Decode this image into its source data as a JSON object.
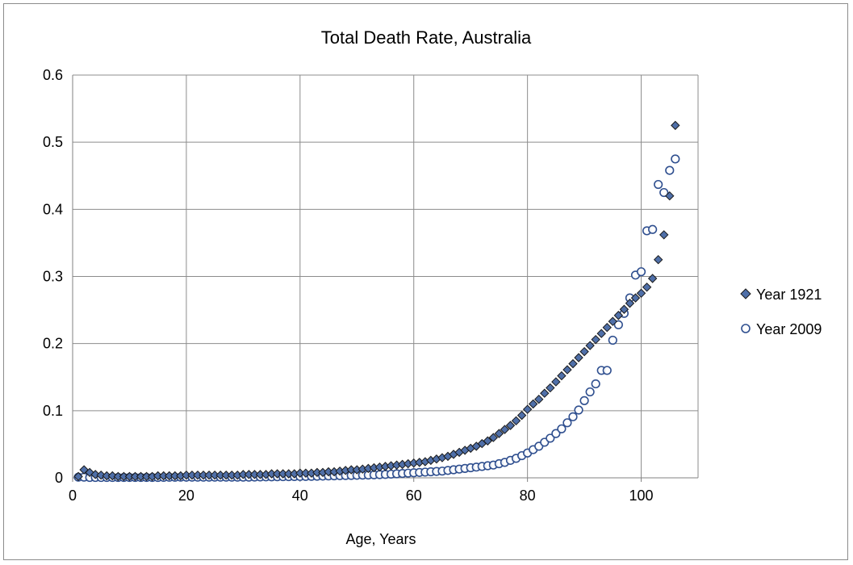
{
  "chart_data": {
    "type": "scatter",
    "title": "Total Death Rate, Australia",
    "xlabel": "Age, Years",
    "ylabel": "",
    "xlim": [
      0,
      110
    ],
    "ylim": [
      0,
      0.6
    ],
    "xticks": [
      "0",
      "20",
      "40",
      "60",
      "80",
      "100"
    ],
    "yticks": [
      "0",
      "0.1",
      "0.2",
      "0.3",
      "0.4",
      "0.5",
      "0.6"
    ],
    "grid": true,
    "legend_position": "right",
    "series": [
      {
        "name": "Year 1921",
        "marker": "diamond",
        "color": "#4f6fa8",
        "edge": "#1a1a1a",
        "x": [
          1,
          2,
          3,
          4,
          5,
          6,
          7,
          8,
          9,
          10,
          11,
          12,
          13,
          14,
          15,
          16,
          17,
          18,
          19,
          20,
          21,
          22,
          23,
          24,
          25,
          26,
          27,
          28,
          29,
          30,
          31,
          32,
          33,
          34,
          35,
          36,
          37,
          38,
          39,
          40,
          41,
          42,
          43,
          44,
          45,
          46,
          47,
          48,
          49,
          50,
          51,
          52,
          53,
          54,
          55,
          56,
          57,
          58,
          59,
          60,
          61,
          62,
          63,
          64,
          65,
          66,
          67,
          68,
          69,
          70,
          71,
          72,
          73,
          74,
          75,
          76,
          77,
          78,
          79,
          80,
          81,
          82,
          83,
          84,
          85,
          86,
          87,
          88,
          89,
          90,
          91,
          92,
          93,
          94,
          95,
          96,
          97,
          98,
          99,
          100,
          101,
          102,
          103,
          104,
          105,
          106
        ],
        "y": [
          0.002,
          0.012,
          0.008,
          0.005,
          0.004,
          0.003,
          0.003,
          0.002,
          0.002,
          0.002,
          0.002,
          0.002,
          0.002,
          0.002,
          0.003,
          0.003,
          0.003,
          0.003,
          0.003,
          0.004,
          0.004,
          0.004,
          0.004,
          0.004,
          0.004,
          0.004,
          0.004,
          0.004,
          0.004,
          0.005,
          0.005,
          0.005,
          0.005,
          0.005,
          0.006,
          0.006,
          0.006,
          0.006,
          0.006,
          0.007,
          0.007,
          0.007,
          0.008,
          0.008,
          0.009,
          0.009,
          0.01,
          0.011,
          0.012,
          0.012,
          0.013,
          0.014,
          0.015,
          0.016,
          0.017,
          0.018,
          0.019,
          0.02,
          0.021,
          0.022,
          0.023,
          0.024,
          0.026,
          0.028,
          0.03,
          0.032,
          0.035,
          0.038,
          0.041,
          0.044,
          0.047,
          0.051,
          0.055,
          0.06,
          0.066,
          0.072,
          0.078,
          0.085,
          0.093,
          0.102,
          0.11,
          0.117,
          0.126,
          0.134,
          0.143,
          0.152,
          0.161,
          0.17,
          0.179,
          0.188,
          0.197,
          0.206,
          0.215,
          0.224,
          0.233,
          0.242,
          0.251,
          0.26,
          0.268,
          0.275,
          0.284,
          0.297,
          0.325,
          0.362,
          0.42,
          0.525
        ]
      },
      {
        "name": "Year 2009",
        "marker": "circle-open",
        "color": "#2f4f8f",
        "x": [
          1,
          2,
          3,
          4,
          5,
          6,
          7,
          8,
          9,
          10,
          11,
          12,
          13,
          14,
          15,
          16,
          17,
          18,
          19,
          20,
          21,
          22,
          23,
          24,
          25,
          26,
          27,
          28,
          29,
          30,
          31,
          32,
          33,
          34,
          35,
          36,
          37,
          38,
          39,
          40,
          41,
          42,
          43,
          44,
          45,
          46,
          47,
          48,
          49,
          50,
          51,
          52,
          53,
          54,
          55,
          56,
          57,
          58,
          59,
          60,
          61,
          62,
          63,
          64,
          65,
          66,
          67,
          68,
          69,
          70,
          71,
          72,
          73,
          74,
          75,
          76,
          77,
          78,
          79,
          80,
          81,
          82,
          83,
          84,
          85,
          86,
          87,
          88,
          89,
          90,
          91,
          92,
          93,
          94,
          95,
          96,
          97,
          98,
          99,
          100,
          101,
          102,
          103,
          104,
          105,
          106
        ],
        "y": [
          0.001,
          0.001,
          0.0005,
          0.0005,
          0.0005,
          0.0005,
          0.0005,
          0.0005,
          0.0005,
          0.0005,
          0.0005,
          0.0005,
          0.0005,
          0.0005,
          0.0006,
          0.0007,
          0.0008,
          0.0009,
          0.001,
          0.001,
          0.001,
          0.001,
          0.001,
          0.001,
          0.001,
          0.001,
          0.001,
          0.001,
          0.001,
          0.001,
          0.001,
          0.0012,
          0.0013,
          0.0014,
          0.0015,
          0.0016,
          0.0017,
          0.0018,
          0.0019,
          0.002,
          0.0021,
          0.0022,
          0.0024,
          0.0026,
          0.0028,
          0.003,
          0.0032,
          0.0034,
          0.0036,
          0.0038,
          0.004,
          0.0042,
          0.0045,
          0.0048,
          0.0051,
          0.0055,
          0.006,
          0.0065,
          0.007,
          0.0075,
          0.008,
          0.0085,
          0.009,
          0.0095,
          0.01,
          0.011,
          0.012,
          0.013,
          0.014,
          0.015,
          0.016,
          0.017,
          0.018,
          0.019,
          0.021,
          0.023,
          0.026,
          0.029,
          0.033,
          0.037,
          0.042,
          0.047,
          0.053,
          0.059,
          0.066,
          0.073,
          0.082,
          0.091,
          0.101,
          0.115,
          0.128,
          0.14,
          0.16,
          0.16,
          0.205,
          0.228,
          0.245,
          0.268,
          0.302,
          0.307,
          0.368,
          0.37,
          0.437,
          0.425,
          0.458,
          0.475
        ]
      }
    ]
  }
}
